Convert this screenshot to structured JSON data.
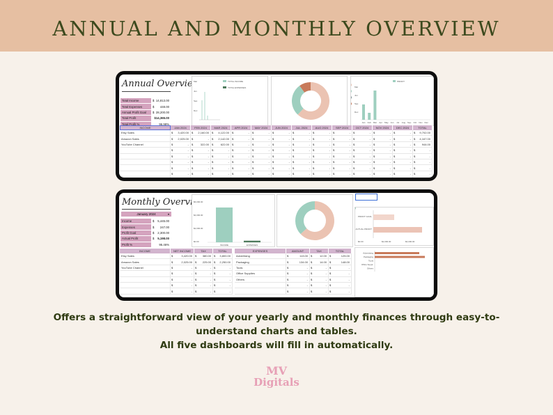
{
  "banner": {
    "title": "ANNUAL AND MONTHLY OVERVIEW"
  },
  "annual": {
    "title": "Annual Overview",
    "summary": [
      {
        "label": "Total Income",
        "cur": "$",
        "value": "14,813.00"
      },
      {
        "label": "Total Expenses",
        "cur": "$",
        "value": "448.00"
      },
      {
        "label": "Annual Profit Goal",
        "cur": "$",
        "value": "28,200.00"
      },
      {
        "label": "Total Profit",
        "cur": "",
        "value": "$14,365.00"
      },
      {
        "label": "Total Profit %",
        "cur": "",
        "value": "96.98%"
      }
    ],
    "legend": {
      "income": "TOTAL INCOME",
      "expenses": "TOTAL EXPENSES"
    },
    "line_y_labels": [
      "Mar",
      "Jun",
      "Sep",
      "Dec"
    ],
    "profit_legend": "PROFIT",
    "profit_y_labels": [
      "Mar",
      "Jun",
      "Sep",
      "Dec"
    ],
    "profit_x_labels": [
      "Jan",
      "Feb",
      "Mar",
      "Apr",
      "May",
      "Jun",
      "Jul",
      "Aug",
      "Sep",
      "Oct",
      "Nov",
      "Dec"
    ],
    "table": {
      "headers": [
        "INCOME",
        "JAN 2024",
        "FEB 2024",
        "MAR 2024",
        "APR 2024",
        "MAY 2024",
        "JUN 2024",
        "JUL 2024",
        "AUG 2024",
        "SEP 2024",
        "OCT 2024",
        "NOV 2024",
        "DEC 2024",
        "TOTAL"
      ],
      "rows": [
        {
          "label": "Etsy Sales",
          "values": [
            "3,420.00",
            "2,160.00",
            "4,122.00",
            "-",
            "-",
            "-",
            "-",
            "-",
            "-",
            "-",
            "-",
            "-",
            "9,702.00"
          ]
        },
        {
          "label": "Amazon Sales",
          "values": [
            "2,025.00",
            "-",
            "2,142.00",
            "-",
            "-",
            "-",
            "-",
            "-",
            "-",
            "-",
            "-",
            "-",
            "4,167.00"
          ]
        },
        {
          "label": "YouTube Channel",
          "values": [
            "-",
            "322.00",
            "622.00",
            "-",
            "-",
            "-",
            "-",
            "-",
            "-",
            "-",
            "-",
            "-",
            "944.00"
          ]
        },
        {
          "label": "",
          "values": [
            "-",
            "-",
            "-",
            "-",
            "-",
            "-",
            "-",
            "-",
            "-",
            "-",
            "-",
            "-",
            "-"
          ]
        },
        {
          "label": "",
          "values": [
            "-",
            "-",
            "-",
            "-",
            "-",
            "-",
            "-",
            "-",
            "-",
            "-",
            "-",
            "-",
            "-"
          ]
        },
        {
          "label": "",
          "values": [
            "-",
            "-",
            "-",
            "-",
            "-",
            "-",
            "-",
            "-",
            "-",
            "-",
            "-",
            "-",
            "-"
          ]
        },
        {
          "label": "",
          "values": [
            "-",
            "-",
            "-",
            "-",
            "-",
            "-",
            "-",
            "-",
            "-",
            "-",
            "-",
            "-",
            "-"
          ]
        },
        {
          "label": "",
          "values": [
            "-",
            "-",
            "-",
            "-",
            "-",
            "-",
            "-",
            "-",
            "-",
            "-",
            "-",
            "-",
            "-"
          ]
        },
        {
          "label": "",
          "values": [
            "-",
            "-",
            "-",
            "-",
            "-",
            "-",
            "-",
            "-",
            "-",
            "-",
            "-",
            "-",
            "-"
          ]
        }
      ]
    }
  },
  "monthly": {
    "title": "Monthly Overview",
    "month": "January 2024",
    "summary": [
      {
        "label": "Income",
        "cur": "$",
        "value": "5,445.00"
      },
      {
        "label": "Expenses",
        "cur": "$",
        "value": "247.00"
      },
      {
        "label": "Profit Goal",
        "cur": "$",
        "value": "2,300.00"
      },
      {
        "label": "Actual Profit",
        "cur": "$",
        "value": "5,198.00"
      },
      {
        "label": "Profit %",
        "cur": "",
        "value": "95.46%"
      }
    ],
    "bar_y_labels": [
      "$6,000.00",
      "$4,000.00",
      "$2,000.00",
      "$0.00"
    ],
    "bar_x_labels": [
      "INCOME",
      "EXPENSES"
    ],
    "profit_labels": [
      "PROFIT GOAL",
      "ACTUAL PROFIT"
    ],
    "profit_axis": [
      "$0.00",
      "$2,000.00",
      "$4,000.00"
    ],
    "expense_labels": [
      "Advertising",
      "Packaging",
      "Tools",
      "Office Suppl.",
      "Others"
    ],
    "income_table": {
      "headers": [
        "INCOME",
        "NET INCOME",
        "TAX",
        "TOTAL"
      ],
      "rows": [
        {
          "label": "Etsy Sales",
          "values": [
            "3,420.00",
            "380.00",
            "3,800.00"
          ]
        },
        {
          "label": "Amazon Sales",
          "values": [
            "2,025.00",
            "225.00",
            "2,250.00"
          ]
        },
        {
          "label": "YouTube Channel",
          "values": [
            "-",
            "-",
            "-"
          ]
        },
        {
          "label": "",
          "values": [
            "-",
            "-",
            "-"
          ]
        },
        {
          "label": "",
          "values": [
            "-",
            "-",
            "-"
          ]
        },
        {
          "label": "",
          "values": [
            "-",
            "-",
            "-"
          ]
        },
        {
          "label": "",
          "values": [
            "-",
            "-",
            "-"
          ]
        }
      ]
    },
    "expense_table": {
      "headers": [
        "EXPENSES",
        "AMOUNT",
        "TAX",
        "TOTAL"
      ],
      "rows": [
        {
          "label": "Advertising",
          "values": [
            "113.00",
            "12.00",
            "125.00"
          ]
        },
        {
          "label": "Packaging",
          "values": [
            "134.00",
            "14.00",
            "148.00"
          ]
        },
        {
          "label": "Tools",
          "values": [
            "-",
            "-",
            "-"
          ]
        },
        {
          "label": "Office Supplies",
          "values": [
            "-",
            "-",
            "-"
          ]
        },
        {
          "label": "Others",
          "values": [
            "-",
            "-",
            "-"
          ]
        },
        {
          "label": "",
          "values": [
            "-",
            "-",
            "-"
          ]
        },
        {
          "label": "",
          "values": [
            "-",
            "-",
            "-"
          ]
        }
      ]
    }
  },
  "caption": {
    "line1": "Offers a straightforward view of your yearly and monthly finances through easy-to-",
    "line2": "understand charts and tables.",
    "line3": "All five dashboards will fill in automatically."
  },
  "logo": {
    "line1": "MV",
    "line2": "Digitals"
  },
  "colors": {
    "banner": "#e6bfa2",
    "background": "#f7f1ea",
    "title": "#3d4a1e",
    "sage": "#9ecfbf",
    "peach": "#ebc3b2",
    "terracotta": "#c87a5a",
    "label_pink": "#d4a3be",
    "header_mauve": "#d2b4ce"
  }
}
